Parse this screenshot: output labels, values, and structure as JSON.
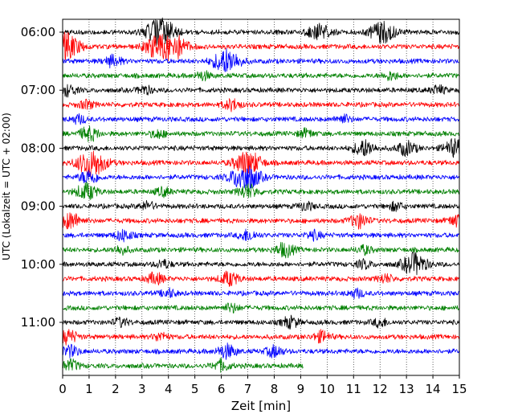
{
  "chart_data": {
    "type": "line",
    "title": "",
    "xlabel": "Zeit  [min]",
    "ylabel": "UTC (Lokalzeit = UTC + 02:00)",
    "xlim": [
      0,
      15
    ],
    "x_ticks": [
      0,
      1,
      2,
      3,
      4,
      5,
      6,
      7,
      8,
      9,
      10,
      11,
      12,
      13,
      14,
      15
    ],
    "x_tick_labels": [
      "0",
      "1",
      "2",
      "3",
      "4",
      "5",
      "6",
      "7",
      "8",
      "9",
      "10",
      "11",
      "12",
      "13",
      "14",
      "15"
    ],
    "y_tick_labels": [
      "06:00",
      "07:00",
      "08:00",
      "09:00",
      "10:00",
      "11:00"
    ],
    "y_tick_rows": [
      0,
      4,
      8,
      12,
      16,
      20
    ],
    "row_duration_min": 15,
    "row_colors": [
      "#000000",
      "#ff0000",
      "#0000ff",
      "#008000"
    ],
    "grid": "vertical dotted",
    "last_row_end_min": 9.1,
    "rows": [
      {
        "start": "06:00",
        "events": [
          [
            3.7,
            1.0
          ],
          [
            9.7,
            0.6
          ],
          [
            12.1,
            0.8
          ]
        ]
      },
      {
        "start": "06:15",
        "events": [
          [
            0.1,
            1.0
          ],
          [
            3.5,
            0.7
          ],
          [
            4.2,
            0.9
          ]
        ]
      },
      {
        "start": "06:30",
        "events": [
          [
            6.2,
            0.9
          ],
          [
            1.9,
            0.4
          ]
        ]
      },
      {
        "start": "06:45",
        "events": [
          [
            5.3,
            0.3
          ],
          [
            12.4,
            0.3
          ]
        ]
      },
      {
        "start": "07:00",
        "events": [
          [
            0.2,
            0.4
          ],
          [
            3.1,
            0.3
          ],
          [
            14.2,
            0.3
          ]
        ]
      },
      {
        "start": "07:15",
        "events": [
          [
            0.9,
            0.3
          ],
          [
            6.4,
            0.4
          ]
        ]
      },
      {
        "start": "07:30",
        "events": [
          [
            0.6,
            0.3
          ],
          [
            10.6,
            0.3
          ]
        ]
      },
      {
        "start": "07:45",
        "events": [
          [
            1.0,
            0.5
          ],
          [
            3.6,
            0.3
          ],
          [
            9.2,
            0.3
          ]
        ]
      },
      {
        "start": "08:00",
        "events": [
          [
            11.4,
            0.6
          ],
          [
            13.0,
            0.5
          ],
          [
            14.8,
            0.6
          ]
        ]
      },
      {
        "start": "08:15",
        "events": [
          [
            1.1,
            1.0
          ],
          [
            7.0,
            0.9
          ]
        ]
      },
      {
        "start": "08:30",
        "events": [
          [
            6.9,
            1.0
          ],
          [
            1.0,
            0.5
          ]
        ]
      },
      {
        "start": "08:45",
        "events": [
          [
            0.9,
            0.6
          ],
          [
            3.8,
            0.3
          ],
          [
            7.0,
            0.5
          ]
        ]
      },
      {
        "start": "09:00",
        "events": [
          [
            3.2,
            0.3
          ],
          [
            9.2,
            0.3
          ],
          [
            12.6,
            0.3
          ]
        ]
      },
      {
        "start": "09:15",
        "events": [
          [
            0.3,
            0.6
          ],
          [
            11.2,
            0.5
          ],
          [
            14.9,
            0.4
          ]
        ]
      },
      {
        "start": "09:30",
        "events": [
          [
            2.3,
            0.4
          ],
          [
            7.0,
            0.4
          ],
          [
            9.5,
            0.3
          ]
        ]
      },
      {
        "start": "09:45",
        "events": [
          [
            2.2,
            0.3
          ],
          [
            8.4,
            0.5
          ],
          [
            11.4,
            0.3
          ]
        ]
      },
      {
        "start": "10:00",
        "events": [
          [
            13.3,
            0.8
          ],
          [
            3.8,
            0.3
          ],
          [
            11.4,
            0.3
          ]
        ]
      },
      {
        "start": "10:15",
        "events": [
          [
            3.5,
            0.4
          ],
          [
            6.3,
            0.5
          ],
          [
            12.2,
            0.3
          ]
        ]
      },
      {
        "start": "10:30",
        "events": [
          [
            4.0,
            0.3
          ],
          [
            11.1,
            0.3
          ]
        ]
      },
      {
        "start": "10:45",
        "events": [
          [
            6.4,
            0.3
          ]
        ]
      },
      {
        "start": "11:00",
        "events": [
          [
            2.2,
            0.3
          ],
          [
            8.6,
            0.4
          ],
          [
            12.0,
            0.3
          ]
        ]
      },
      {
        "start": "11:15",
        "events": [
          [
            0.2,
            0.5
          ],
          [
            3.7,
            0.3
          ],
          [
            9.8,
            0.4
          ]
        ]
      },
      {
        "start": "11:30",
        "events": [
          [
            0.3,
            0.4
          ],
          [
            6.2,
            0.5
          ],
          [
            8.0,
            0.4
          ]
        ]
      },
      {
        "start": "11:45",
        "events": [
          [
            0.3,
            0.4
          ],
          [
            6.0,
            0.4
          ]
        ]
      }
    ]
  }
}
